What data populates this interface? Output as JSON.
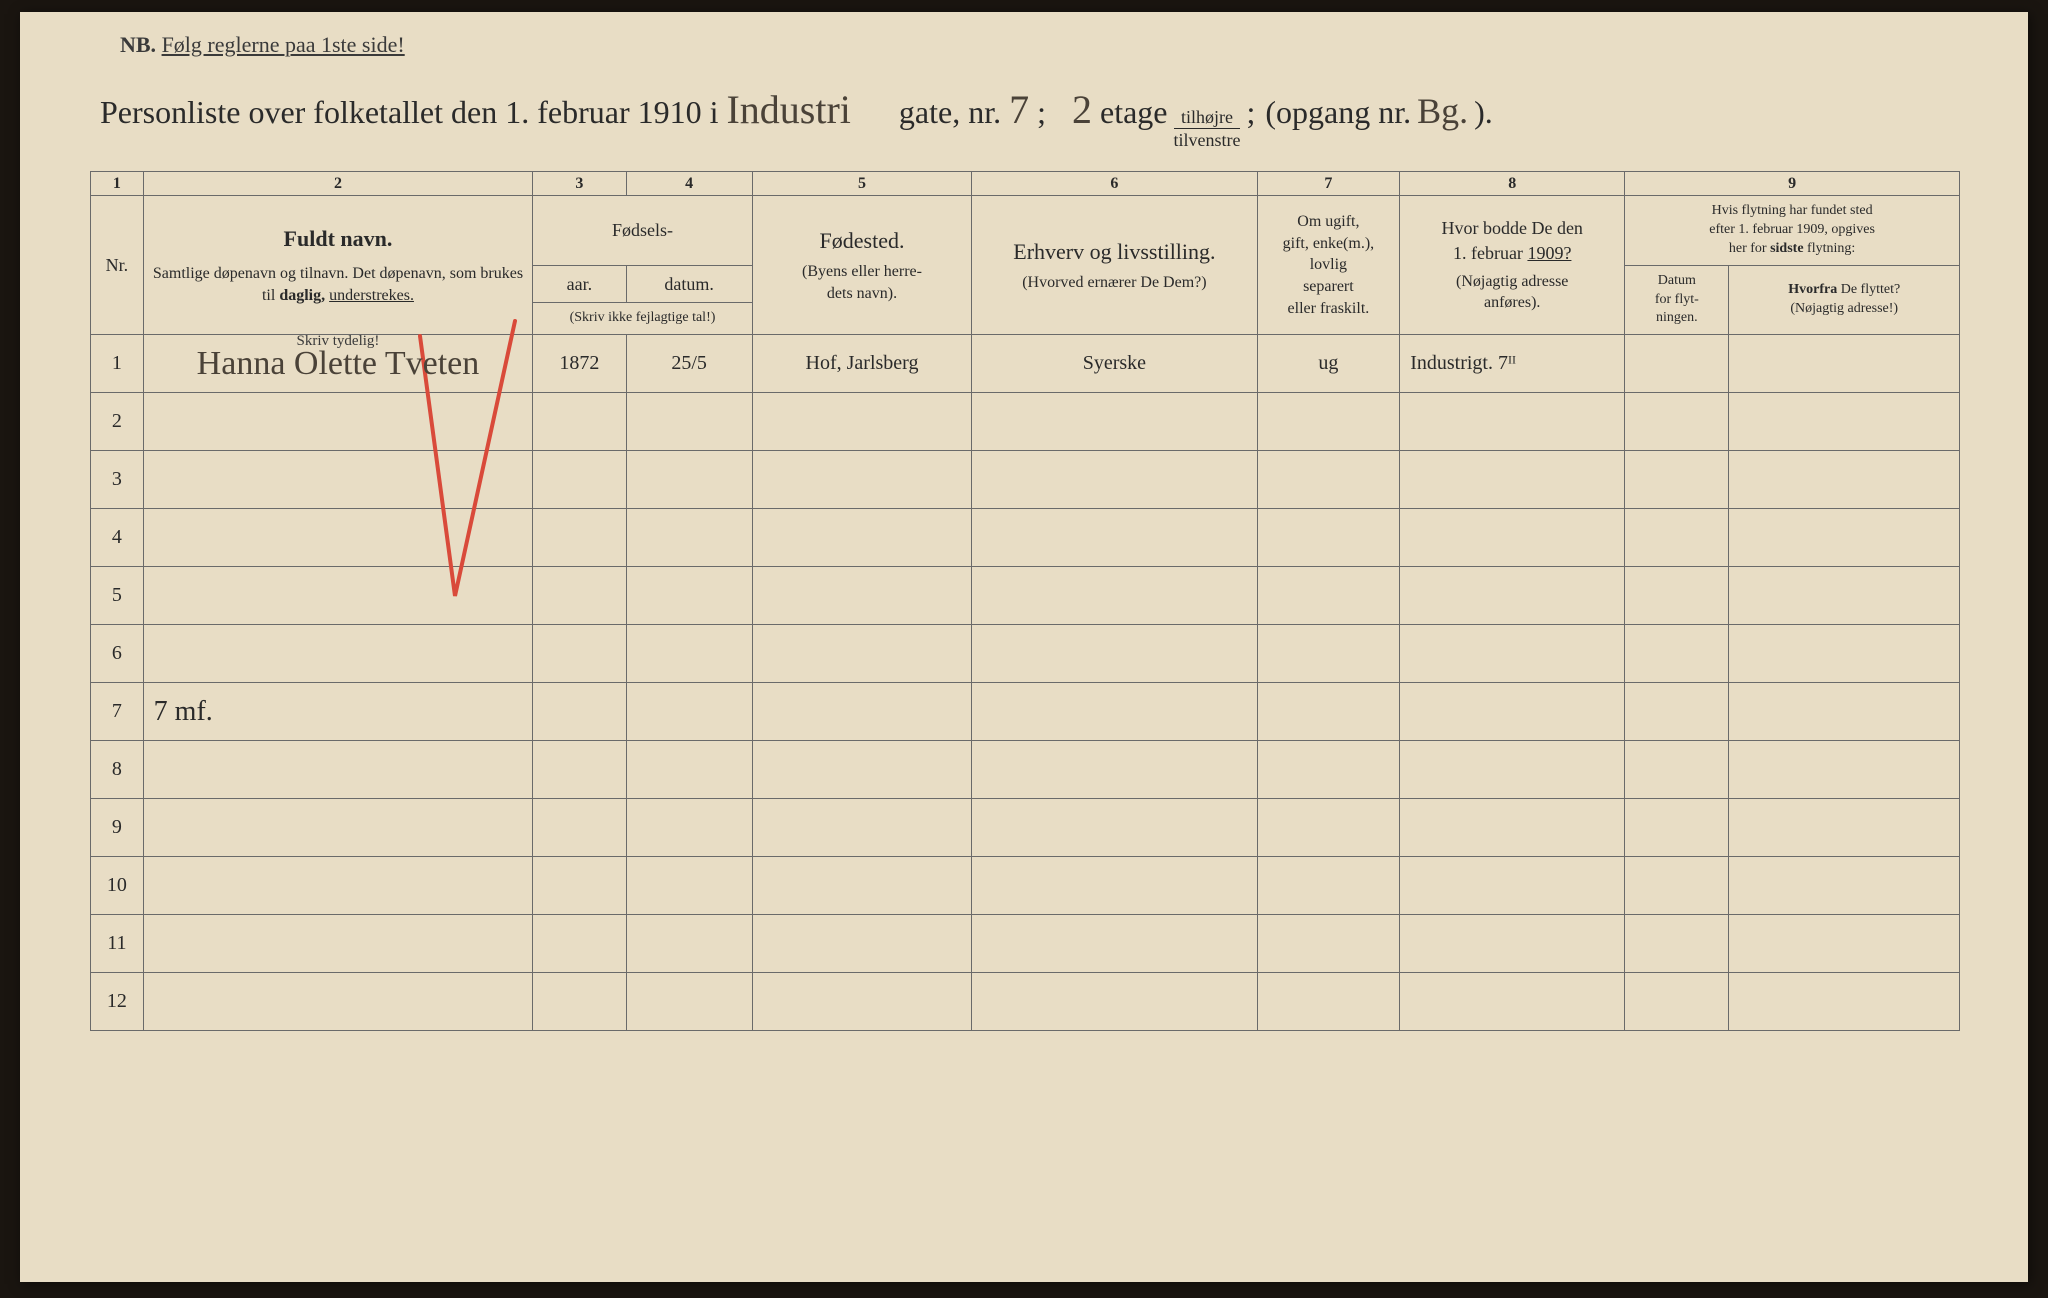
{
  "header": {
    "nb": "NB.",
    "rules": "Følg reglerne paa 1ste side!",
    "title_prefix": "Personliste over folketallet den 1. februar 1910 i",
    "street_hand": "Industri",
    "gate_label": "gate, nr.",
    "gate_nr": "7",
    "semicolon": ";",
    "floor_nr": "2",
    "etage": "etage",
    "tilhojre": "tilhøjre",
    "tilvenstre": "tilvenstre",
    "opgang_label": "(opgang nr.",
    "opgang_nr": "Bg.",
    "close": ")."
  },
  "colnums": [
    "1",
    "2",
    "3",
    "4",
    "5",
    "6",
    "7",
    "8",
    "9"
  ],
  "columns": {
    "nr": "Nr.",
    "name_title": "Fuldt navn.",
    "name_sub": "Samtlige døpenavn og tilnavn. Det døpenavn, som brukes til <span class='bold'>daglig,</span> <span class='underline'>understrekes.</span>",
    "birth_title": "Fødsels-",
    "year": "aar.",
    "date": "datum.",
    "year_note": "(Skriv ikke fejlagtige tal!)",
    "birthplace": "Fødested.",
    "birthplace_sub": "(Byens eller herre-<br>dets navn).",
    "occupation": "Erhverv og livsstilling.",
    "occupation_sub": "(Hvorved ernærer De Dem?)",
    "marital": "Om ugift,<br>gift, enke(m.),<br>lovlig<br>separert<br>eller fraskilt.",
    "address_title": "Hvor bodde De den<br>1. februar <span class='underline'>1909?</span>",
    "address_sub": "(Nøjagtig adresse<br>anføres).",
    "move_title": "Hvis flytning har fundet sted<br>efter 1. februar 1909, opgives<br>her for <span class='bold'>sidste</span> flytning:",
    "move_date": "Datum<br>for flyt-<br>ningen.",
    "move_from": "<span class='bold'>Hvorfra</span> De flyttet?<br>(Nøjagtig adresse!)",
    "skriv": "Skriv tydelig!"
  },
  "row1": {
    "nr": "1",
    "name": "Hanna Olette Tveten",
    "year": "1872",
    "date": "25/5",
    "birthplace": "Hof, Jarlsberg",
    "occupation": "Syerske",
    "marital": "ug",
    "address": "Industrigt. 7ᴵᴵ"
  },
  "row7": "7 mf.",
  "row_numbers": [
    "2",
    "3",
    "4",
    "5",
    "6",
    "7",
    "8",
    "9",
    "10",
    "11",
    "12"
  ],
  "colors": {
    "paper": "#e8ddc5",
    "ink": "#2a2a2a",
    "hand_ink": "#4a4238",
    "red_pencil": "#d94a3a",
    "border": "#6a6a6a"
  }
}
